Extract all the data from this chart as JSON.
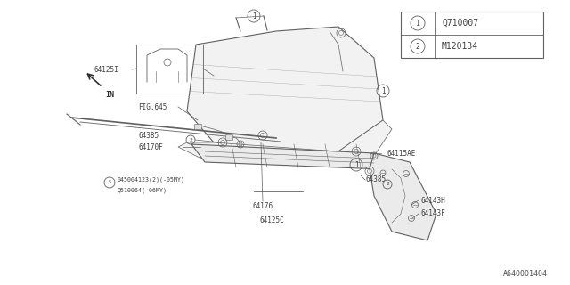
{
  "bg_color": "#ffffff",
  "line_color": "#606060",
  "text_color": "#404040",
  "fig_width": 6.4,
  "fig_height": 3.2,
  "dpi": 100,
  "legend_rows": [
    {
      "sym": "1",
      "code": "Q710007"
    },
    {
      "sym": "2",
      "code": "M120134"
    }
  ],
  "footer_text": "A640001404"
}
